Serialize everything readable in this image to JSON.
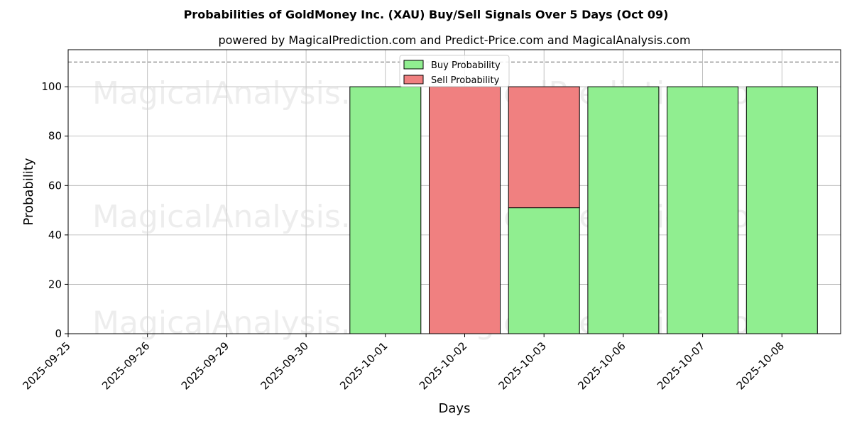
{
  "chart_data": {
    "type": "bar",
    "stacked": true,
    "title": "Probabilities of GoldMoney Inc. (XAU) Buy/Sell Signals Over 5 Days (Oct 09)",
    "subtitle": "powered by MagicalPrediction.com and Predict-Price.com and MagicalAnalysis.com",
    "xlabel": "Days",
    "ylabel": "Probability",
    "ylim": [
      0,
      115
    ],
    "yticks": [
      0,
      20,
      40,
      60,
      80,
      100
    ],
    "reference_line": 110,
    "grid": true,
    "legend_position": "top-center",
    "categories": [
      "2025-09-25",
      "2025-09-26",
      "2025-09-29",
      "2025-09-30",
      "2025-10-01",
      "2025-10-02",
      "2025-10-03",
      "2025-10-06",
      "2025-10-07",
      "2025-10-08"
    ],
    "series": [
      {
        "name": "Buy Probability",
        "color": "#90ee90",
        "values": [
          null,
          null,
          null,
          null,
          100,
          0,
          51,
          100,
          100,
          100
        ]
      },
      {
        "name": "Sell Probability",
        "color": "#f08080",
        "values": [
          null,
          null,
          null,
          null,
          0,
          100,
          49,
          0,
          0,
          0
        ]
      }
    ],
    "watermarks": [
      "MagicalAnalysis.com",
      "MagicalPrediction.com"
    ]
  }
}
